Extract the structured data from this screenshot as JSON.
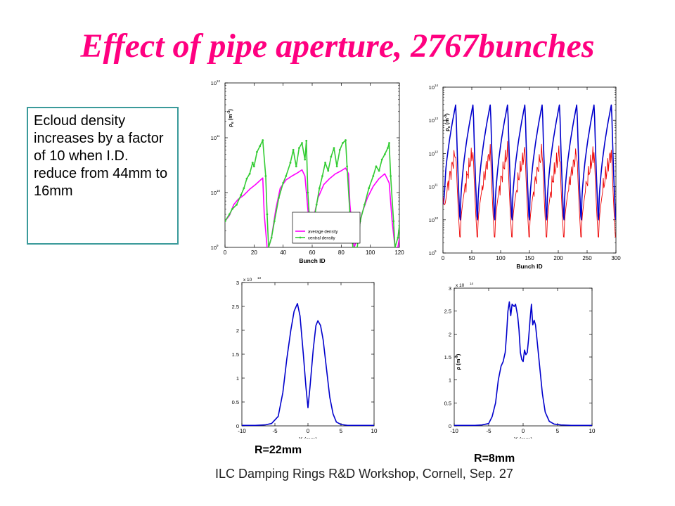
{
  "title": "Effect of pipe aperture, 2767bunches",
  "textbox": {
    "text": "Ecloud density increases by a factor of 10 when I.D. reduce from 44mm to 16mm"
  },
  "labels": {
    "r22": "R=22mm",
    "r8": "R=8mm"
  },
  "footer": "ILC Damping Rings R&D Workshop, Cornell, Sep. 27",
  "colors": {
    "title": "#ff0080",
    "magenta": "#ff00ff",
    "green": "#33cc33",
    "blue": "#0000cc",
    "red": "#ee0000",
    "box_border": "#3a9a9a"
  },
  "chart_data": [
    {
      "id": "tl",
      "type": "line",
      "xlabel": "Bunch ID",
      "ylabel_base": "ρ",
      "ylabel_sub": "e",
      "ylabel_unit": "(m",
      "ylabel_exp": "-3",
      "ylabel_close": ")",
      "yscale": "log",
      "xlim": [
        0,
        120
      ],
      "ylim_exp": [
        9,
        12
      ],
      "xticks": [
        0,
        20,
        40,
        60,
        80,
        100,
        120
      ],
      "yticks_exp": [
        9,
        10,
        11,
        12
      ],
      "legend_position": "lower-right",
      "series": [
        {
          "name": "average density",
          "color": "#ff00ff",
          "marker": false,
          "points": [
            [
              0,
              3000000000.0
            ],
            [
              3,
              3800000000.0
            ],
            [
              6,
              6000000000.0
            ],
            [
              9,
              7500000000.0
            ],
            [
              13,
              9000000000.0
            ],
            [
              17,
              11500000000.0
            ],
            [
              21,
              14000000000.0
            ],
            [
              24,
              16500000000.0
            ],
            [
              26,
              18500000000.0
            ],
            [
              27,
              4000000000.0
            ],
            [
              29,
              1000000000.0
            ],
            [
              30,
              440000000.0
            ],
            [
              32,
              1500000000.0
            ],
            [
              35,
              5000000000.0
            ],
            [
              38,
              12000000000.0
            ],
            [
              42,
              17000000000.0
            ],
            [
              46,
              20000000000.0
            ],
            [
              50,
              23000000000.0
            ],
            [
              53,
              26000000000.0
            ],
            [
              55,
              20000000000.0
            ],
            [
              57,
              5000000000.0
            ],
            [
              59,
              1800000000.0
            ],
            [
              61,
              3500000000.0
            ],
            [
              64,
              8000000000.0
            ],
            [
              68,
              14000000000.0
            ],
            [
              72,
              18000000000.0
            ],
            [
              76,
              22000000000.0
            ],
            [
              80,
              25000000000.0
            ],
            [
              83,
              28000000000.0
            ],
            [
              85,
              22000000000.0
            ],
            [
              86,
              6000000000.0
            ],
            [
              88,
              1500000000.0
            ],
            [
              89,
              600000000.0
            ],
            [
              91,
              1500000000.0
            ],
            [
              94,
              4000000000.0
            ],
            [
              98,
              8000000000.0
            ],
            [
              102,
              13000000000.0
            ],
            [
              106,
              18000000000.0
            ],
            [
              110,
              22000000000.0
            ],
            [
              113,
              15000000000.0
            ],
            [
              115,
              3000000000.0
            ],
            [
              117,
              440000000.0
            ],
            [
              119,
              800000000.0
            ],
            [
              120,
              1500000000.0
            ]
          ]
        },
        {
          "name": "central density",
          "color": "#33cc33",
          "marker": true,
          "points": [
            [
              0,
              3000000000.0
            ],
            [
              3,
              4000000000.0
            ],
            [
              5,
              5000000000.0
            ],
            [
              8,
              6000000000.0
            ],
            [
              11,
              9000000000.0
            ],
            [
              13,
              12000000000.0
            ],
            [
              15,
              18000000000.0
            ],
            [
              17,
              22000000000.0
            ],
            [
              19,
              35000000000.0
            ],
            [
              20,
              30000000000.0
            ],
            [
              22,
              55000000000.0
            ],
            [
              24,
              70000000000.0
            ],
            [
              26,
              90000000000.0
            ],
            [
              28,
              20000000000.0
            ],
            [
              29,
              4000000000.0
            ],
            [
              30,
              520000000.0
            ],
            [
              32,
              1500000000.0
            ],
            [
              34,
              3000000000.0
            ],
            [
              37,
              8000000000.0
            ],
            [
              40,
              15000000000.0
            ],
            [
              42,
              20000000000.0
            ],
            [
              45,
              35000000000.0
            ],
            [
              47,
              60000000000.0
            ],
            [
              49,
              30000000000.0
            ],
            [
              51,
              65000000000.0
            ],
            [
              53,
              80000000000.0
            ],
            [
              55,
              40000000000.0
            ],
            [
              56,
              88000000000.0
            ],
            [
              57,
              10000000000.0
            ],
            [
              59,
              1500000000.0
            ],
            [
              61,
              3000000000.0
            ],
            [
              63,
              6000000000.0
            ],
            [
              65,
              12000000000.0
            ],
            [
              67,
              20000000000.0
            ],
            [
              69,
              35000000000.0
            ],
            [
              71,
              25000000000.0
            ],
            [
              73,
              45000000000.0
            ],
            [
              75,
              65000000000.0
            ],
            [
              77,
              30000000000.0
            ],
            [
              79,
              60000000000.0
            ],
            [
              81,
              80000000000.0
            ],
            [
              83,
              90000000000.0
            ],
            [
              84,
              30000000000.0
            ],
            [
              86,
              4000000000.0
            ],
            [
              88,
              1000000000.0
            ],
            [
              89,
              400000000.0
            ],
            [
              91,
              1000000000.0
            ],
            [
              93,
              3000000000.0
            ],
            [
              96,
              6000000000.0
            ],
            [
              99,
              12000000000.0
            ],
            [
              102,
              20000000000.0
            ],
            [
              104,
              30000000000.0
            ],
            [
              106,
              25000000000.0
            ],
            [
              108,
              40000000000.0
            ],
            [
              110,
              50000000000.0
            ],
            [
              112,
              65000000000.0
            ],
            [
              113,
              80000000000.0
            ],
            [
              114,
              20000000000.0
            ],
            [
              116,
              3000000000.0
            ],
            [
              117,
              600000000.0
            ],
            [
              119,
              1500000000.0
            ],
            [
              120,
              2500000000.0
            ]
          ]
        }
      ]
    },
    {
      "id": "tr",
      "type": "line",
      "xlabel": "Bunch ID",
      "ylabel_base": "ρ",
      "ylabel_sub": "e",
      "ylabel_unit": "(m",
      "ylabel_exp": "-3",
      "ylabel_close": ")",
      "yscale": "log",
      "xlim": [
        0,
        300
      ],
      "ylim_exp": [
        9,
        14
      ],
      "xticks": [
        0,
        50,
        100,
        150,
        200,
        250,
        300
      ],
      "yticks_exp": [
        9,
        10,
        11,
        12,
        13,
        14
      ],
      "period": 30,
      "cycles": 9.5,
      "series": [
        {
          "name": "blue",
          "color": "#0000cc",
          "peak": 32000000000000.0,
          "trough": 5000000000.0
        },
        {
          "name": "red",
          "color": "#ee0000",
          "peak": 1200000000000.0,
          "trough": 1500000000.0
        }
      ]
    },
    {
      "id": "bl",
      "type": "line",
      "xlabel": "X  (mm)",
      "ylabel": "",
      "scale_note": "x 10",
      "scale_exp": "13",
      "xlim": [
        -10,
        10
      ],
      "ylim": [
        0,
        3
      ],
      "xticks": [
        -10,
        -5,
        0,
        5,
        10
      ],
      "yticks": [
        0,
        0.5,
        1,
        1.5,
        2,
        2.5,
        3
      ],
      "ytick_labels": [
        "0",
        "0.5",
        "1",
        "1.5",
        "2",
        "2.5",
        "3"
      ],
      "series": [
        {
          "name": "",
          "color": "#0000cc",
          "points": [
            [
              -10,
              0.01
            ],
            [
              -8,
              0.01
            ],
            [
              -6.5,
              0.02
            ],
            [
              -5.5,
              0.05
            ],
            [
              -4.5,
              0.2
            ],
            [
              -3.8,
              0.7
            ],
            [
              -3.2,
              1.4
            ],
            [
              -2.6,
              2.0
            ],
            [
              -2.1,
              2.4
            ],
            [
              -1.6,
              2.56
            ],
            [
              -1.2,
              2.3
            ],
            [
              -0.7,
              1.5
            ],
            [
              -0.3,
              0.8
            ],
            [
              0,
              0.38
            ],
            [
              0.3,
              0.8
            ],
            [
              0.8,
              1.6
            ],
            [
              1.2,
              2.1
            ],
            [
              1.5,
              2.2
            ],
            [
              1.9,
              2.1
            ],
            [
              2.3,
              1.8
            ],
            [
              2.8,
              1.2
            ],
            [
              3.3,
              0.6
            ],
            [
              3.8,
              0.25
            ],
            [
              4.3,
              0.08
            ],
            [
              5,
              0.03
            ],
            [
              6,
              0.01
            ],
            [
              10,
              0.01
            ]
          ]
        }
      ]
    },
    {
      "id": "br",
      "type": "line",
      "xlabel": "X  (mm)",
      "ylabel_base": "ρ",
      "ylabel_unit": "(m",
      "ylabel_exp": "-3",
      "ylabel_close": ")",
      "scale_note": "x 10",
      "scale_exp": "14",
      "xlim": [
        -10,
        10
      ],
      "ylim": [
        0,
        3
      ],
      "xticks": [
        -10,
        -5,
        0,
        5,
        10
      ],
      "yticks": [
        0,
        0.5,
        1,
        1.5,
        2,
        2.5,
        3
      ],
      "ytick_labels": [
        "0",
        "0.5",
        "1",
        "1.5",
        "2",
        "2.5",
        "3"
      ],
      "series": [
        {
          "name": "",
          "color": "#0000cc",
          "points": [
            [
              -10,
              0.01
            ],
            [
              -7,
              0.01
            ],
            [
              -6,
              0.02
            ],
            [
              -5,
              0.05
            ],
            [
              -4.5,
              0.2
            ],
            [
              -4,
              0.5
            ],
            [
              -3.6,
              1.0
            ],
            [
              -3.2,
              1.3
            ],
            [
              -2.9,
              1.4
            ],
            [
              -2.6,
              1.6
            ],
            [
              -2.4,
              2.0
            ],
            [
              -2.2,
              2.5
            ],
            [
              -2.0,
              2.7
            ],
            [
              -1.8,
              2.4
            ],
            [
              -1.6,
              2.65
            ],
            [
              -1.3,
              2.6
            ],
            [
              -1.1,
              2.65
            ],
            [
              -0.8,
              2.4
            ],
            [
              -0.6,
              2.1
            ],
            [
              -0.4,
              1.6
            ],
            [
              -0.2,
              1.45
            ],
            [
              0,
              1.4
            ],
            [
              0.2,
              1.65
            ],
            [
              0.4,
              1.55
            ],
            [
              0.6,
              1.6
            ],
            [
              0.8,
              1.9
            ],
            [
              1.0,
              2.3
            ],
            [
              1.2,
              2.65
            ],
            [
              1.4,
              2.2
            ],
            [
              1.6,
              2.3
            ],
            [
              1.8,
              2.2
            ],
            [
              2.0,
              1.9
            ],
            [
              2.4,
              1.3
            ],
            [
              2.8,
              0.7
            ],
            [
              3.2,
              0.3
            ],
            [
              3.8,
              0.1
            ],
            [
              4.5,
              0.04
            ],
            [
              5.5,
              0.02
            ],
            [
              7,
              0.01
            ],
            [
              10,
              0.01
            ]
          ]
        }
      ]
    }
  ]
}
